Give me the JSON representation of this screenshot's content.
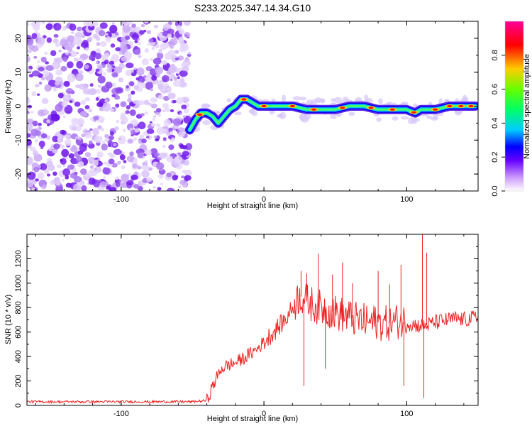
{
  "title": "S233.2025.347.14.34.G10",
  "colors": {
    "noise": "#7722ee",
    "snr_line": "#ee2222",
    "colorbar": [
      "#ffffff",
      "#6600ff",
      "#0000ff",
      "#00ccff",
      "#00ff66",
      "#66ff00",
      "#ffcc00",
      "#ff0000",
      "#ff0099"
    ]
  },
  "chart_data": [
    {
      "type": "heatmap",
      "xlabel": "Height of straight line (km)",
      "ylabel": "Frequency (Hz)",
      "xlim": [
        -166,
        150
      ],
      "ylim": [
        -25,
        25
      ],
      "x_tick_labels": [
        "-100",
        "0",
        "100"
      ],
      "x_ticks": [
        -100,
        0,
        100
      ],
      "y_tick_labels": [
        "-20",
        "-10",
        "0",
        "10",
        "20"
      ],
      "y_ticks": [
        -20,
        -10,
        0,
        10,
        20
      ],
      "noise_region_x": [
        -166,
        -52
      ],
      "ridge": {
        "x": [
          -52,
          -48,
          -44,
          -40,
          -36,
          -32,
          -28,
          -24,
          -20,
          -16,
          -12,
          -8,
          -4,
          0,
          10,
          20,
          30,
          40,
          50,
          60,
          70,
          80,
          90,
          100,
          106,
          110,
          114,
          120,
          130,
          140,
          148
        ],
        "y": [
          -7,
          -4,
          -2,
          -2,
          -3,
          -5,
          -3,
          -1,
          0,
          2,
          2,
          1,
          0,
          0,
          0,
          0,
          -1,
          -1,
          -1,
          0,
          0,
          -1,
          -1,
          -1,
          -2,
          -1,
          -1,
          -1,
          0,
          0,
          0
        ]
      },
      "colorbar": {
        "label": "Normalized spectral amplitude",
        "range": [
          0,
          1
        ],
        "tick_labels": [
          "0.0",
          "0.2",
          "0.4",
          "0.6",
          "0.8"
        ],
        "ticks": [
          0,
          0.2,
          0.4,
          0.6,
          0.8
        ]
      }
    },
    {
      "type": "line",
      "xlabel": "Height of straight line (km)",
      "ylabel": "SNR (10 * v/v)",
      "xlim": [
        -166,
        150
      ],
      "ylim": [
        0,
        1400
      ],
      "x_tick_labels": [
        "-100",
        "0",
        "100"
      ],
      "x_ticks": [
        -100,
        0,
        100
      ],
      "y_tick_labels": [
        "0",
        "200",
        "400",
        "600",
        "800",
        "1000",
        "1200"
      ],
      "y_ticks": [
        0,
        200,
        400,
        600,
        800,
        1000,
        1200
      ],
      "series": [
        {
          "name": "SNR",
          "x": [
            -166,
            -50,
            -40,
            -35,
            -30,
            -25,
            -20,
            -15,
            -10,
            -5,
            0,
            5,
            10,
            15,
            20,
            25,
            30,
            35,
            40,
            45,
            50,
            55,
            60,
            65,
            70,
            75,
            80,
            85,
            90,
            95,
            100,
            105,
            110,
            115,
            120,
            125,
            130,
            135,
            140,
            145,
            150
          ],
          "y": [
            30,
            30,
            40,
            180,
            300,
            330,
            350,
            380,
            420,
            460,
            520,
            580,
            640,
            700,
            800,
            900,
            850,
            820,
            800,
            780,
            760,
            740,
            720,
            700,
            690,
            680,
            680,
            670,
            680,
            690,
            680,
            660,
            650,
            660,
            680,
            690,
            700,
            710,
            700,
            710,
            720
          ]
        }
      ],
      "spikes": [
        {
          "x": 26,
          "y": 1100
        },
        {
          "x": 28,
          "y": 160
        },
        {
          "x": 30,
          "y": 1080
        },
        {
          "x": 38,
          "y": 1240
        },
        {
          "x": 43,
          "y": 300
        },
        {
          "x": 48,
          "y": 1070
        },
        {
          "x": 55,
          "y": 1170
        },
        {
          "x": 62,
          "y": 1000
        },
        {
          "x": 80,
          "y": 1100
        },
        {
          "x": 88,
          "y": 990
        },
        {
          "x": 96,
          "y": 1150
        },
        {
          "x": 98,
          "y": 160
        },
        {
          "x": 111,
          "y": 1400
        },
        {
          "x": 112,
          "y": 60
        },
        {
          "x": 114,
          "y": 1250
        }
      ]
    }
  ]
}
